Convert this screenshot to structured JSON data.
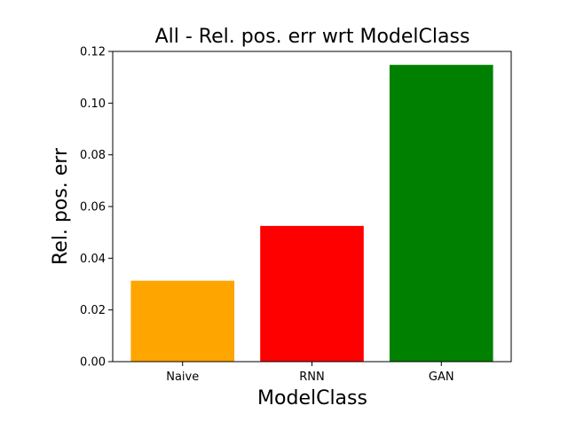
{
  "chart_data": {
    "type": "bar",
    "title": "All - Rel. pos. err wrt ModelClass",
    "xlabel": "ModelClass",
    "ylabel": "Rel. pos. err",
    "categories": [
      "Naive",
      "RNN",
      "GAN"
    ],
    "values": [
      0.0313,
      0.0525,
      0.1148
    ],
    "colors": [
      "#ffa500",
      "#ff0000",
      "#008000"
    ],
    "ylim": [
      0,
      0.12
    ],
    "yticks": [
      0.0,
      0.02,
      0.04,
      0.06,
      0.08,
      0.1,
      0.12
    ],
    "ytick_labels": [
      "0.00",
      "0.02",
      "0.04",
      "0.06",
      "0.08",
      "0.10",
      "0.12"
    ],
    "grid": false,
    "legend": "none"
  }
}
